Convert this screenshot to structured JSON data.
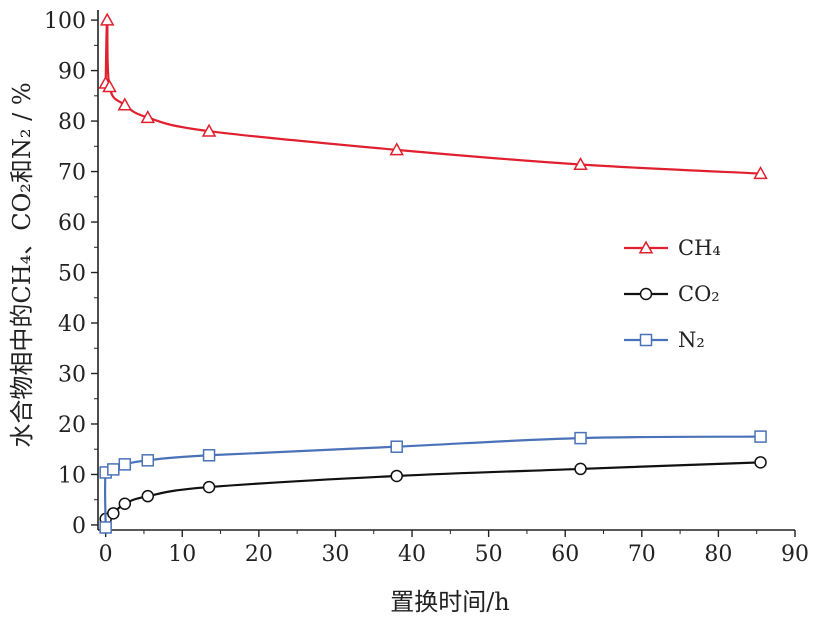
{
  "chart_data": {
    "type": "line",
    "xlabel": "置换时间/h",
    "ylabel": "水合物相中的CH₄、CO₂和N₂ / %",
    "xlim": [
      -1,
      90
    ],
    "ylim": [
      -1,
      102
    ],
    "xticks": [
      0,
      10,
      20,
      30,
      40,
      50,
      60,
      70,
      80,
      90
    ],
    "yticks": [
      0,
      10,
      20,
      30,
      40,
      50,
      60,
      70,
      80,
      90,
      100
    ],
    "legend_position": "right-middle",
    "grid": false,
    "series": [
      {
        "name": "CH₄",
        "color": "#e0202e",
        "marker": "triangle",
        "points": [
          [
            0,
            87.5
          ],
          [
            0.2,
            100
          ],
          [
            0.5,
            86.8
          ],
          [
            2.5,
            83.2
          ],
          [
            5.5,
            80.7
          ],
          [
            13.5,
            78.0
          ],
          [
            38,
            74.3
          ],
          [
            62,
            71.4
          ],
          [
            85.5,
            69.6
          ]
        ]
      },
      {
        "name": "CO₂",
        "color": "#111111",
        "marker": "circle",
        "points": [
          [
            0,
            1.2
          ],
          [
            1,
            2.3
          ],
          [
            2.5,
            4.2
          ],
          [
            5.5,
            5.7
          ],
          [
            13.5,
            7.5
          ],
          [
            38,
            9.7
          ],
          [
            62,
            11.1
          ],
          [
            85.5,
            12.4
          ]
        ]
      },
      {
        "name": "N₂",
        "color": "#4a72b8",
        "marker": "square",
        "points": [
          [
            0,
            -0.5
          ],
          [
            0,
            10.4
          ],
          [
            1,
            11.0
          ],
          [
            2.5,
            12.0
          ],
          [
            5.5,
            12.8
          ],
          [
            13.5,
            13.8
          ],
          [
            38,
            15.5
          ],
          [
            62,
            17.2
          ],
          [
            85.5,
            17.5
          ]
        ]
      }
    ]
  }
}
